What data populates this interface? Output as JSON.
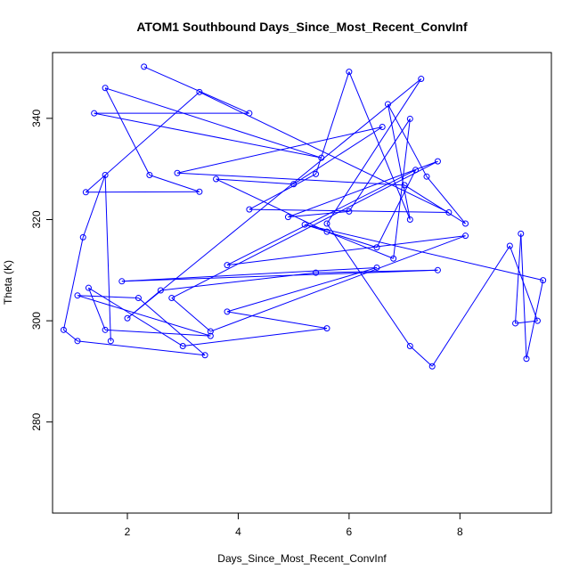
{
  "chart_data": {
    "type": "line",
    "title": "ATOM1 Southbound Days_Since_Most_Recent_ConvInf",
    "xlabel": "Days_Since_Most_Recent_ConvInf",
    "ylabel": "Theta (K)",
    "xlim": [
      0.65,
      9.65
    ],
    "ylim": [
      262,
      353
    ],
    "xticks": [
      2,
      4,
      6,
      8
    ],
    "yticks": [
      280,
      300,
      320,
      340
    ],
    "grid": false,
    "line_color": "#0000ff",
    "marker": "open-circle",
    "series": [
      {
        "points": [
          [
            2.3,
            350.2
          ],
          [
            4.2,
            341.0
          ],
          [
            1.4,
            341.0
          ],
          [
            5.5,
            332.2
          ],
          [
            1.6,
            346.0
          ],
          [
            2.4,
            328.8
          ],
          [
            3.3,
            325.5
          ],
          [
            1.25,
            325.4
          ],
          [
            3.3,
            345.2
          ],
          [
            7.8,
            321.4
          ],
          [
            4.2,
            322.0
          ],
          [
            5.4,
            329.0
          ],
          [
            6.0,
            349.2
          ],
          [
            7.1,
            320.0
          ],
          [
            6.7,
            342.8
          ],
          [
            7.4,
            328.5
          ],
          [
            8.1,
            319.2
          ],
          [
            7.0,
            326.8
          ],
          [
            2.9,
            329.2
          ],
          [
            6.6,
            338.3
          ],
          [
            5.0,
            327.0
          ],
          [
            3.6,
            328.0
          ],
          [
            5.6,
            317.6
          ],
          [
            6.8,
            312.3
          ],
          [
            7.1,
            339.9
          ],
          [
            6.0,
            321.6
          ],
          [
            4.9,
            320.5
          ],
          [
            7.6,
            331.5
          ],
          [
            2.8,
            304.5
          ],
          [
            3.5,
            297.9
          ],
          [
            8.1,
            316.8
          ],
          [
            3.8,
            311.0
          ],
          [
            7.2,
            329.8
          ],
          [
            6.5,
            314.5
          ],
          [
            5.2,
            319.0
          ],
          [
            9.5,
            308.0
          ],
          [
            9.2,
            292.5
          ],
          [
            9.1,
            317.2
          ],
          [
            9.0,
            299.5
          ],
          [
            9.4,
            300.0
          ],
          [
            8.9,
            314.8
          ],
          [
            7.5,
            291.0
          ],
          [
            7.1,
            295.0
          ],
          [
            5.6,
            319.2
          ],
          [
            7.3,
            347.8
          ],
          [
            2.0,
            300.5
          ],
          [
            2.6,
            306.0
          ],
          [
            5.4,
            309.5
          ],
          [
            7.6,
            310.0
          ],
          [
            1.9,
            307.8
          ],
          [
            6.5,
            310.5
          ],
          [
            3.8,
            301.8
          ],
          [
            5.6,
            298.5
          ],
          [
            3.0,
            295.0
          ],
          [
            1.3,
            306.5
          ],
          [
            1.6,
            298.2
          ],
          [
            3.5,
            297.0
          ],
          [
            1.1,
            305.0
          ],
          [
            2.2,
            304.5
          ],
          [
            3.4,
            293.2
          ],
          [
            1.1,
            296.0
          ],
          [
            0.85,
            298.2
          ],
          [
            1.2,
            316.5
          ],
          [
            1.6,
            328.8
          ],
          [
            1.7,
            296.0
          ]
        ]
      }
    ]
  }
}
